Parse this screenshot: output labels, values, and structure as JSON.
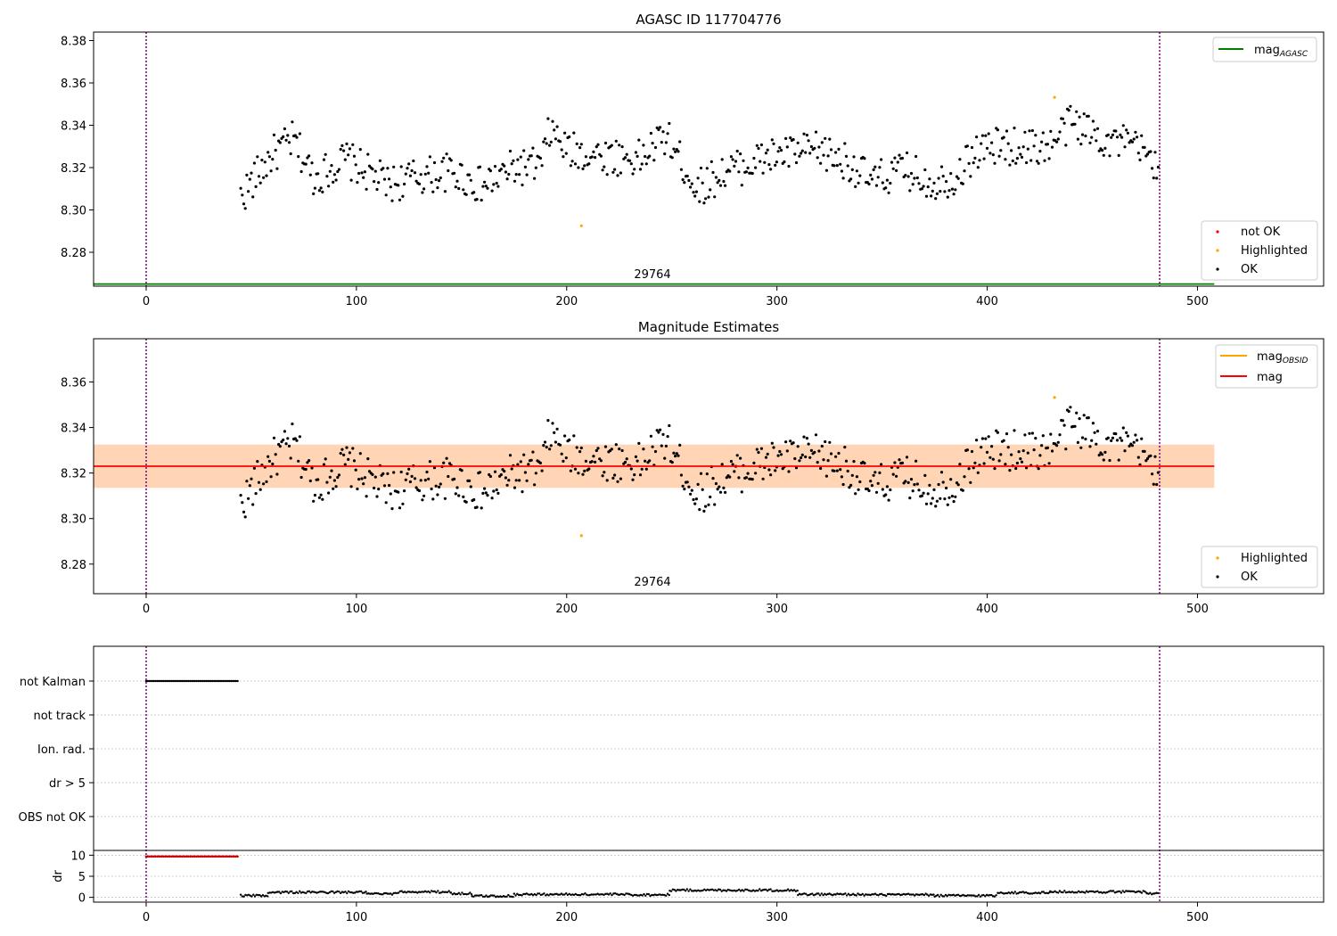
{
  "chart_data": [
    {
      "type": "scatter",
      "title": "AGASC ID 117704776",
      "xlim": [
        -25,
        560
      ],
      "ylim": [
        8.264,
        8.384
      ],
      "xticks": [
        0,
        100,
        200,
        300,
        400,
        500
      ],
      "yticks": [
        8.28,
        8.3,
        8.32,
        8.34,
        8.36,
        8.38
      ],
      "ytick_labels": [
        "8.28",
        "8.30",
        "8.32",
        "8.34",
        "8.36",
        "8.38"
      ],
      "vlines": [
        0,
        482
      ],
      "obsid_label": "29764",
      "obsid_label_x": 241,
      "mag_agasc": 8.265,
      "mag_agasc_range": [
        -25,
        508
      ],
      "upper_legend": {
        "label": "mag",
        "sub": "AGASC",
        "color": "#008000"
      },
      "lower_legend": [
        {
          "label": "not OK",
          "color": "#ff0000"
        },
        {
          "label": "Highlighted",
          "color": "#ffa500"
        },
        {
          "label": "OK",
          "color": "#000000"
        }
      ]
    },
    {
      "type": "scatter",
      "title": "Magnitude Estimates",
      "xlim": [
        -25,
        560
      ],
      "ylim": [
        8.267,
        8.379
      ],
      "xticks": [
        0,
        100,
        200,
        300,
        400,
        500
      ],
      "yticks": [
        8.28,
        8.3,
        8.32,
        8.34,
        8.36
      ],
      "ytick_labels": [
        "8.28",
        "8.30",
        "8.32",
        "8.34",
        "8.36"
      ],
      "vlines": [
        0,
        482
      ],
      "obsid_label": "29764",
      "obsid_label_x": 241,
      "mag": 8.323,
      "mag_band": [
        8.3135,
        8.3325
      ],
      "mag_band_range": [
        -25,
        508
      ],
      "upper_legend": [
        {
          "label": "mag",
          "sub": "OBSID",
          "color": "#ffa500"
        },
        {
          "label": "mag",
          "sub": "",
          "color": "#ff0000"
        }
      ],
      "lower_legend": [
        {
          "label": "Highlighted",
          "color": "#ffa500"
        },
        {
          "label": "OK",
          "color": "#000000"
        }
      ]
    },
    {
      "type": "scatter",
      "title": "",
      "xlim": [
        -25,
        560
      ],
      "xticks": [
        0,
        100,
        200,
        300,
        400,
        500
      ],
      "vlines": [
        0,
        482
      ],
      "flag_rows": [
        "not Kalman",
        "not track",
        "Ion. rad.",
        "dr > 5",
        "OBS not OK"
      ],
      "not_kalman_range": [
        0,
        44
      ],
      "dr_ylabel": "dr",
      "dr_ylim": [
        -0.5,
        10.5
      ],
      "dr_yticks": [
        0,
        5,
        10
      ],
      "dr_ytick_labels": [
        "0",
        "5",
        "10"
      ],
      "dr_high_value": 9.7,
      "dr_high_range": [
        0,
        44
      ],
      "dr_segments": [
        {
          "x": [
            45,
            58
          ],
          "level": 0.4
        },
        {
          "x": [
            58,
            105
          ],
          "level": 1.2
        },
        {
          "x": [
            105,
            120
          ],
          "level": 0.8
        },
        {
          "x": [
            120,
            145
          ],
          "level": 1.3
        },
        {
          "x": [
            145,
            155
          ],
          "level": 0.9
        },
        {
          "x": [
            155,
            175
          ],
          "level": 0.3
        },
        {
          "x": [
            175,
            230
          ],
          "level": 0.7
        },
        {
          "x": [
            230,
            249
          ],
          "level": 0.6
        },
        {
          "x": [
            249,
            310
          ],
          "level": 1.7
        },
        {
          "x": [
            310,
            340
          ],
          "level": 0.7
        },
        {
          "x": [
            340,
            375
          ],
          "level": 0.6
        },
        {
          "x": [
            375,
            405
          ],
          "level": 0.4
        },
        {
          "x": [
            405,
            430
          ],
          "level": 1.1
        },
        {
          "x": [
            430,
            476
          ],
          "level": 1.3
        },
        {
          "x": [
            476,
            482
          ],
          "level": 0.9
        }
      ]
    }
  ]
}
